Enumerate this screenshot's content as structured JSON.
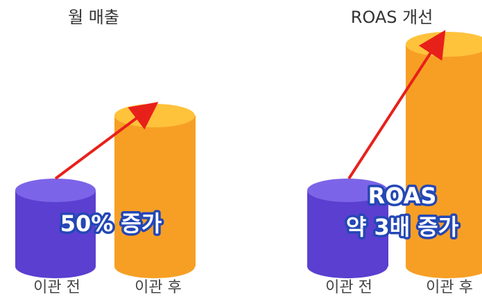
{
  "panels": [
    {
      "title": "월 매출",
      "labels": [
        "이관 전",
        "이관 후"
      ],
      "annotation": [
        "50% 증가"
      ]
    },
    {
      "title": "ROAS 개선",
      "labels": [
        "이관 전",
        "이관 후"
      ],
      "annotation": [
        "ROAS",
        "약 3배 증가"
      ]
    }
  ]
}
